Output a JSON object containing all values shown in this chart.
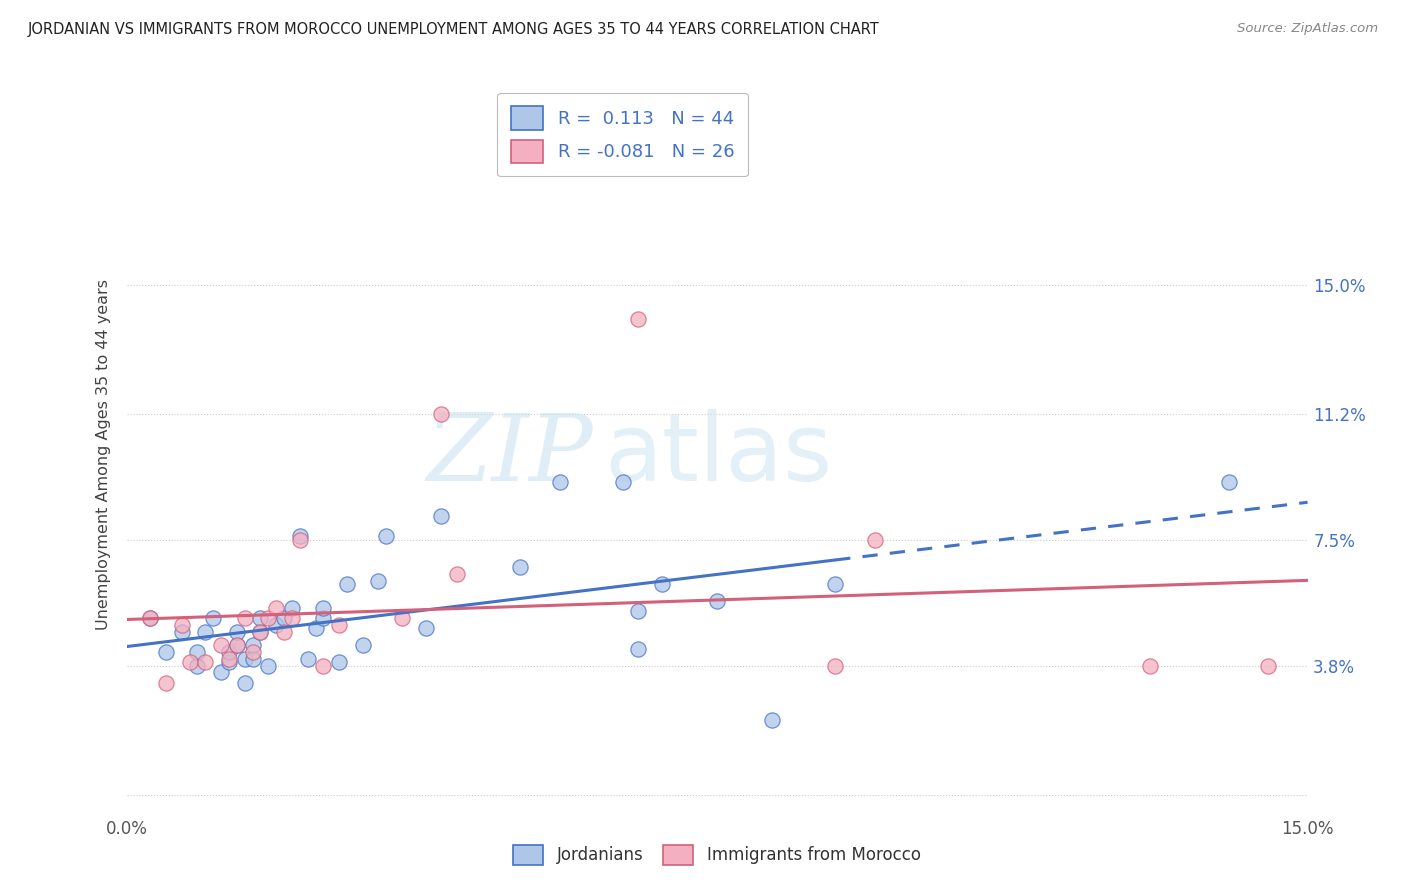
{
  "title": "JORDANIAN VS IMMIGRANTS FROM MOROCCO UNEMPLOYMENT AMONG AGES 35 TO 44 YEARS CORRELATION CHART",
  "source": "Source: ZipAtlas.com",
  "ylabel": "Unemployment Among Ages 35 to 44 years",
  "xmin": 0.0,
  "xmax": 0.15,
  "ymin": -0.005,
  "ymax": 0.205,
  "ytick_values": [
    0.0,
    0.038,
    0.075,
    0.112,
    0.15
  ],
  "ytick_labels_right": [
    "3.8%",
    "7.5%",
    "11.2%",
    "15.0%"
  ],
  "ytick_values_right": [
    0.038,
    0.075,
    0.112,
    0.15
  ],
  "r_jordanian": "0.113",
  "n_jordanian": "44",
  "r_morocco": "-0.081",
  "n_morocco": "26",
  "color_jordanian_fill": "#aec6e8",
  "color_jordanian_edge": "#4472c4",
  "color_morocco_fill": "#f4b0c0",
  "color_morocco_edge": "#d4607a",
  "line_color_jordanian": "#4472c4",
  "line_color_morocco": "#d4607a",
  "jordanian_x": [
    0.003,
    0.005,
    0.007,
    0.009,
    0.009,
    0.01,
    0.011,
    0.012,
    0.013,
    0.013,
    0.014,
    0.014,
    0.015,
    0.015,
    0.016,
    0.016,
    0.017,
    0.017,
    0.018,
    0.019,
    0.02,
    0.021,
    0.022,
    0.023,
    0.024,
    0.025,
    0.025,
    0.027,
    0.028,
    0.03,
    0.032,
    0.033,
    0.038,
    0.04,
    0.05,
    0.055,
    0.063,
    0.065,
    0.065,
    0.068,
    0.075,
    0.082,
    0.09,
    0.14
  ],
  "jordanian_y": [
    0.052,
    0.042,
    0.048,
    0.038,
    0.042,
    0.048,
    0.052,
    0.036,
    0.039,
    0.042,
    0.044,
    0.048,
    0.033,
    0.04,
    0.04,
    0.044,
    0.048,
    0.052,
    0.038,
    0.05,
    0.052,
    0.055,
    0.076,
    0.04,
    0.049,
    0.052,
    0.055,
    0.039,
    0.062,
    0.044,
    0.063,
    0.076,
    0.049,
    0.082,
    0.067,
    0.092,
    0.092,
    0.043,
    0.054,
    0.062,
    0.057,
    0.022,
    0.062,
    0.092
  ],
  "morocco_x": [
    0.003,
    0.005,
    0.007,
    0.008,
    0.01,
    0.012,
    0.013,
    0.014,
    0.015,
    0.016,
    0.017,
    0.018,
    0.019,
    0.02,
    0.021,
    0.022,
    0.025,
    0.027,
    0.035,
    0.04,
    0.042,
    0.065,
    0.09,
    0.095,
    0.13,
    0.145
  ],
  "morocco_y": [
    0.052,
    0.033,
    0.05,
    0.039,
    0.039,
    0.044,
    0.04,
    0.044,
    0.052,
    0.042,
    0.048,
    0.052,
    0.055,
    0.048,
    0.052,
    0.075,
    0.038,
    0.05,
    0.052,
    0.112,
    0.065,
    0.14,
    0.038,
    0.075,
    0.038,
    0.038
  ]
}
